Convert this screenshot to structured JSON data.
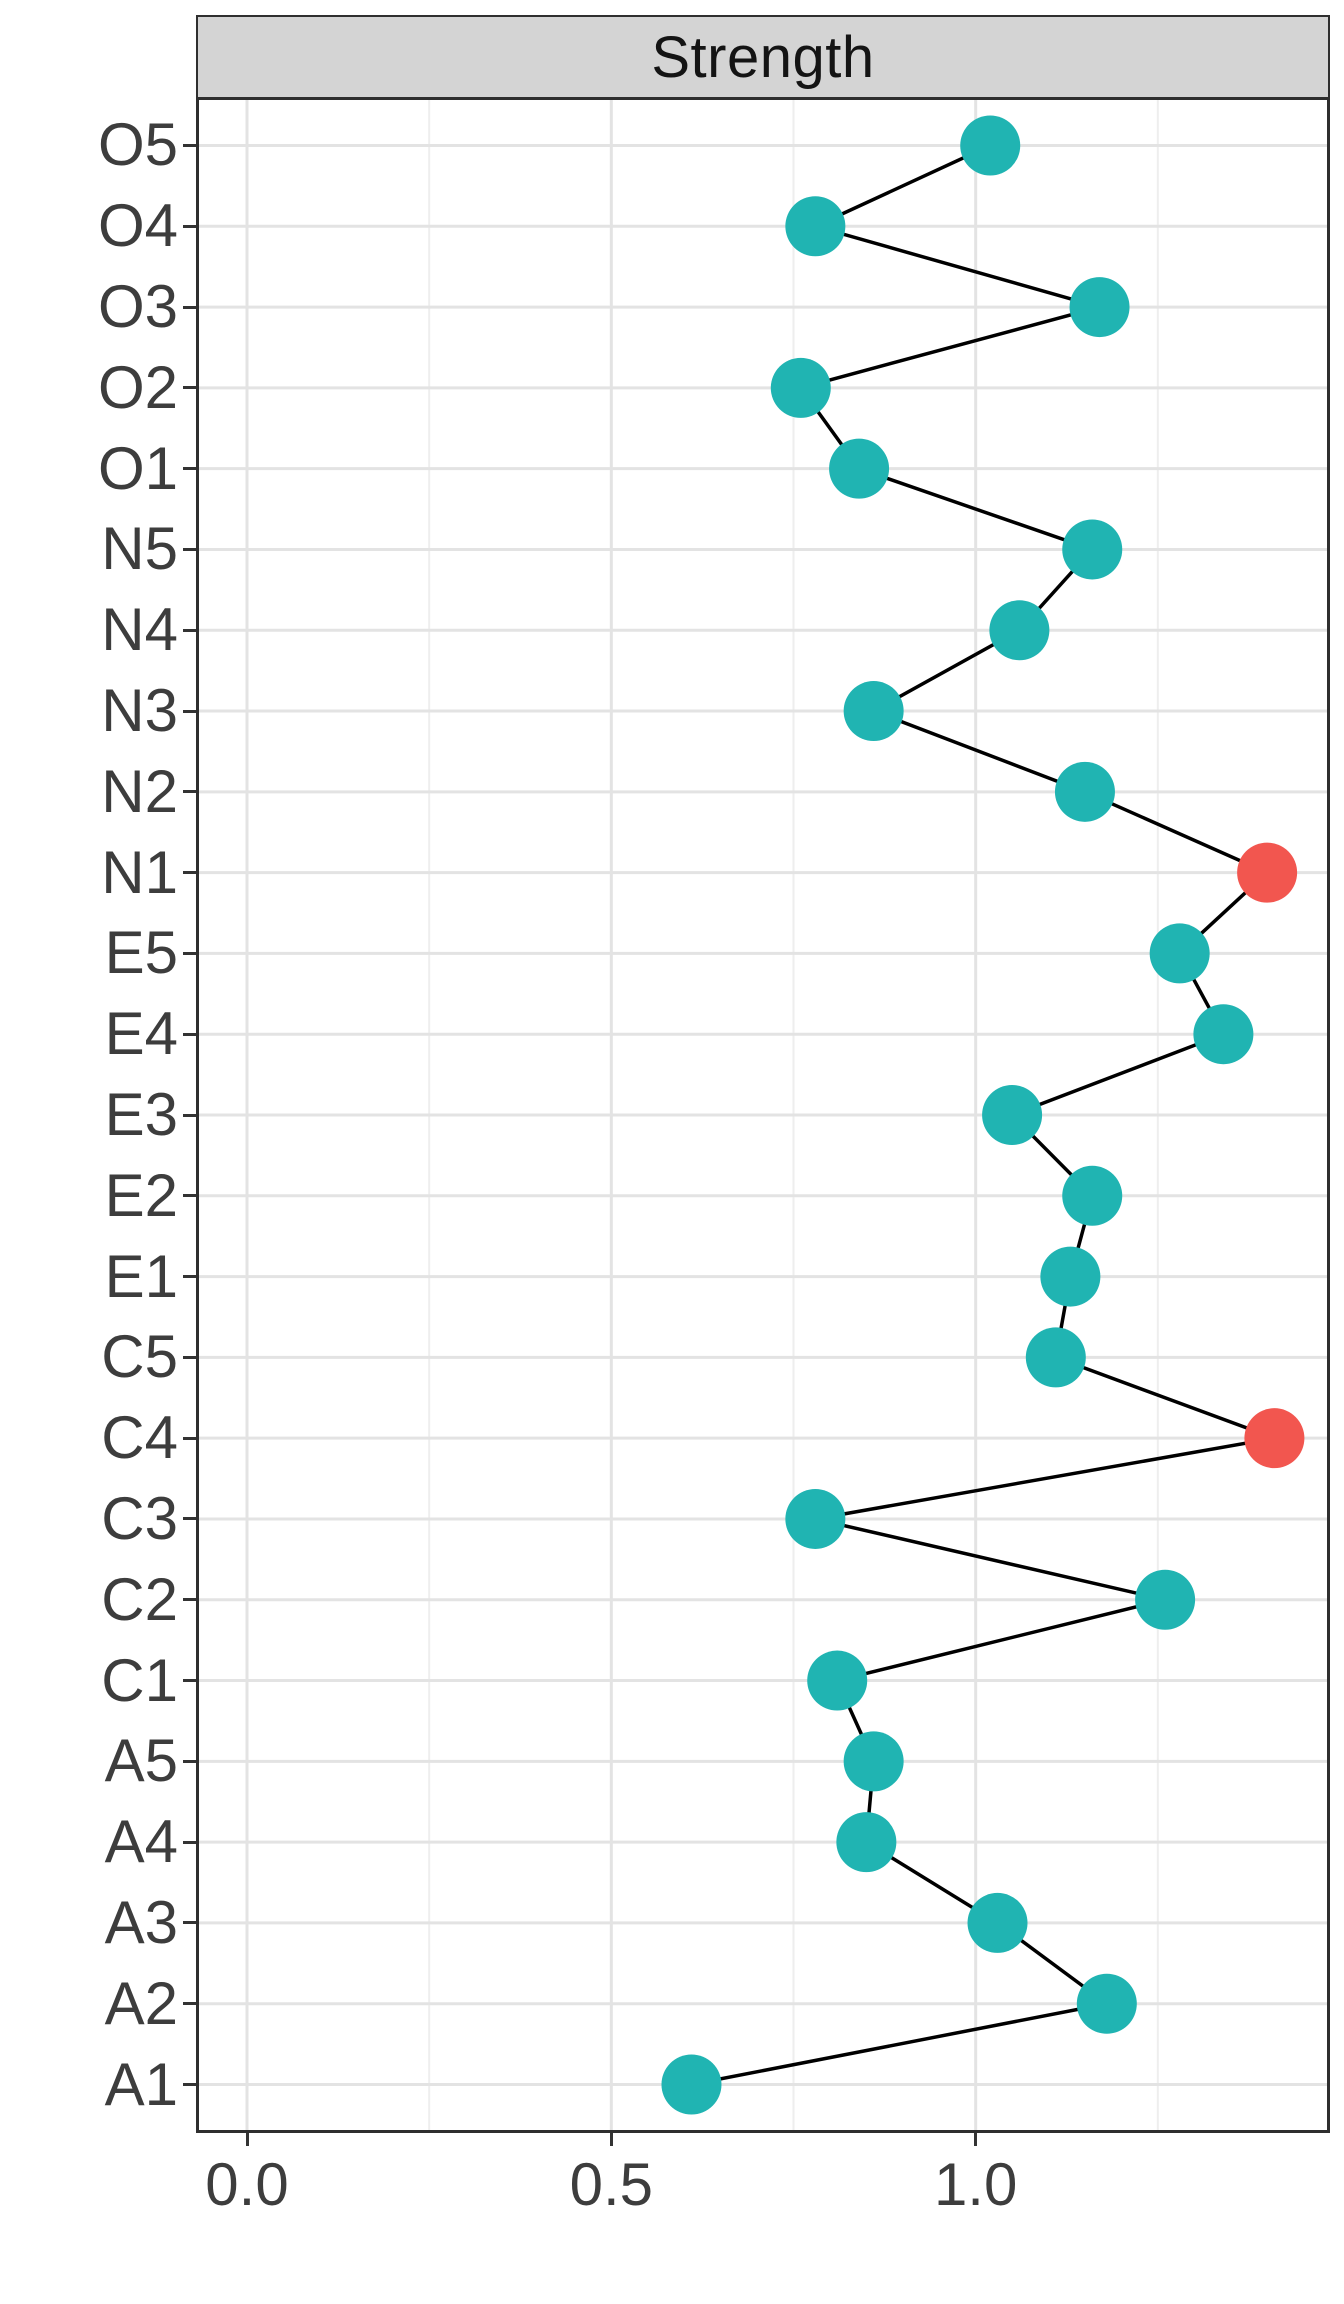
{
  "title": {
    "text": "Strength"
  },
  "x_axis": {
    "min": -0.07,
    "max": 1.4863,
    "major_ticks": [
      {
        "value": 0.0,
        "label": "0.0"
      },
      {
        "value": 0.5,
        "label": "0.5"
      },
      {
        "value": 1.0,
        "label": "1.0"
      }
    ],
    "minor_gridline_values": [
      0.25,
      0.75,
      1.25
    ]
  },
  "colors": {
    "point_default": "#20b4b2",
    "point_highlight": "#f2564f",
    "connector_line": "#000000",
    "grid_major": "#e3e3e3",
    "grid_minor": "#eeeeee",
    "panel_border": "#2f2f2f",
    "strip_bg": "#d4d4d4",
    "axis_text": "#3d3d3d",
    "tick_mark": "#333333"
  },
  "chart_data": {
    "type": "scatter",
    "title": "Strength",
    "orientation": "horizontal-dot-plot",
    "connected": true,
    "xlabel": "",
    "ylabel": "",
    "xlim": [
      -0.07,
      1.49
    ],
    "x_major_gridlines": [
      0.0,
      0.5,
      1.0
    ],
    "x_minor_gridlines": [
      0.25,
      0.75,
      1.25
    ],
    "categories_top_to_bottom": [
      "O5",
      "O4",
      "O3",
      "O2",
      "O1",
      "N5",
      "N4",
      "N3",
      "N2",
      "N1",
      "E5",
      "E4",
      "E3",
      "E2",
      "E1",
      "C5",
      "C4",
      "C3",
      "C2",
      "C1",
      "A5",
      "A4",
      "A3",
      "A2",
      "A1"
    ],
    "points": [
      {
        "label": "O5",
        "value": 1.02,
        "highlight": false
      },
      {
        "label": "O4",
        "value": 0.78,
        "highlight": false
      },
      {
        "label": "O3",
        "value": 1.17,
        "highlight": false
      },
      {
        "label": "O2",
        "value": 0.76,
        "highlight": false
      },
      {
        "label": "O1",
        "value": 0.84,
        "highlight": false
      },
      {
        "label": "N5",
        "value": 1.16,
        "highlight": false
      },
      {
        "label": "N4",
        "value": 1.06,
        "highlight": false
      },
      {
        "label": "N3",
        "value": 0.86,
        "highlight": false
      },
      {
        "label": "N2",
        "value": 1.15,
        "highlight": false
      },
      {
        "label": "N1",
        "value": 1.4,
        "highlight": true
      },
      {
        "label": "E5",
        "value": 1.28,
        "highlight": false
      },
      {
        "label": "E4",
        "value": 1.34,
        "highlight": false
      },
      {
        "label": "E3",
        "value": 1.05,
        "highlight": false
      },
      {
        "label": "E2",
        "value": 1.16,
        "highlight": false
      },
      {
        "label": "E1",
        "value": 1.13,
        "highlight": false
      },
      {
        "label": "C5",
        "value": 1.11,
        "highlight": false
      },
      {
        "label": "C4",
        "value": 1.41,
        "highlight": true
      },
      {
        "label": "C3",
        "value": 0.78,
        "highlight": false
      },
      {
        "label": "C2",
        "value": 1.26,
        "highlight": false
      },
      {
        "label": "C1",
        "value": 0.81,
        "highlight": false
      },
      {
        "label": "A5",
        "value": 0.86,
        "highlight": false
      },
      {
        "label": "A4",
        "value": 0.85,
        "highlight": false
      },
      {
        "label": "A3",
        "value": 1.03,
        "highlight": false
      },
      {
        "label": "A2",
        "value": 1.18,
        "highlight": false
      },
      {
        "label": "A1",
        "value": 0.61,
        "highlight": false
      }
    ]
  }
}
